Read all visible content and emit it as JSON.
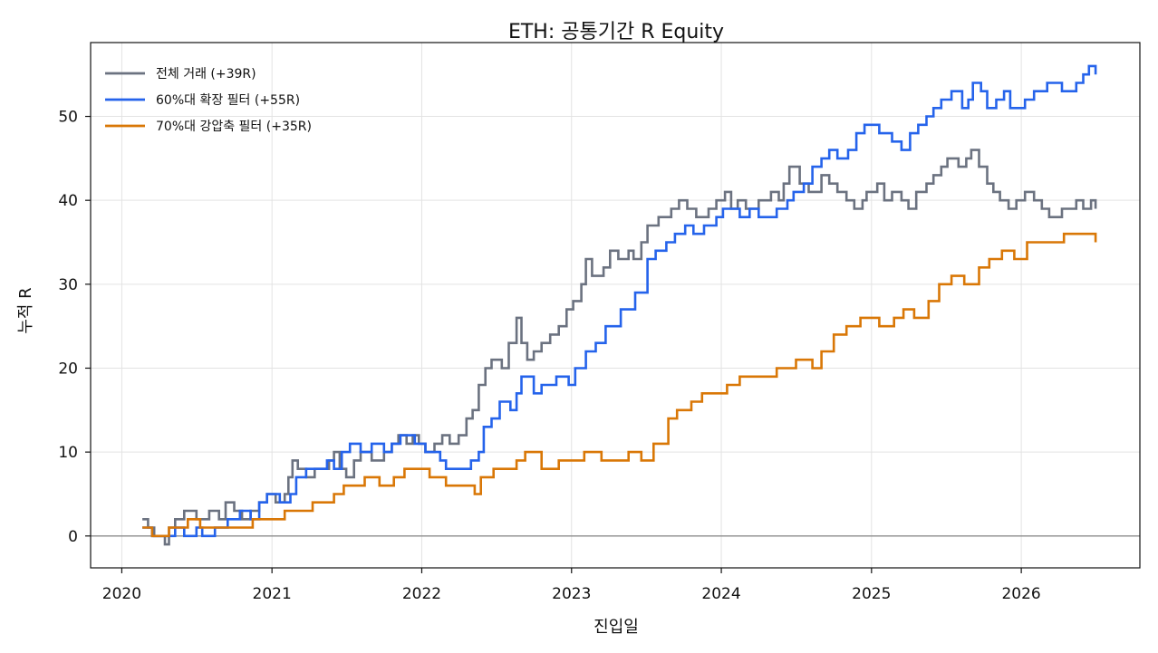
{
  "chart_data": {
    "type": "line",
    "step": true,
    "title": "ETH: 공통기간 R Equity",
    "xlabel": "진입일",
    "ylabel": "누적 R",
    "xlim": [
      "2019-10-17",
      "2026-10-17"
    ],
    "ylim": [
      -3.8,
      58.8
    ],
    "xticks": [
      "2020",
      "2021",
      "2022",
      "2023",
      "2024",
      "2025",
      "2026"
    ],
    "yticks": [
      0,
      10,
      20,
      30,
      40,
      50
    ],
    "grid": true,
    "legend_position": "top-left",
    "series": [
      {
        "name": "전체 거래 (+39R)",
        "color": "#6b7280",
        "points": [
          [
            "2020-02-20",
            2
          ],
          [
            "2020-03-05",
            1
          ],
          [
            "2020-03-20",
            0
          ],
          [
            "2020-04-15",
            -1
          ],
          [
            "2020-04-25",
            1
          ],
          [
            "2020-05-10",
            2
          ],
          [
            "2020-06-01",
            3
          ],
          [
            "2020-07-01",
            2
          ],
          [
            "2020-08-01",
            3
          ],
          [
            "2020-08-25",
            2
          ],
          [
            "2020-09-10",
            4
          ],
          [
            "2020-10-01",
            3
          ],
          [
            "2020-10-20",
            2
          ],
          [
            "2020-11-10",
            3
          ],
          [
            "2020-12-01",
            4
          ],
          [
            "2020-12-20",
            5
          ],
          [
            "2021-01-10",
            4
          ],
          [
            "2021-02-01",
            5
          ],
          [
            "2021-02-10",
            7
          ],
          [
            "2021-02-20",
            9
          ],
          [
            "2021-03-05",
            8
          ],
          [
            "2021-03-25",
            7
          ],
          [
            "2021-04-15",
            8
          ],
          [
            "2021-05-20",
            9
          ],
          [
            "2021-06-01",
            10
          ],
          [
            "2021-06-15",
            8
          ],
          [
            "2021-07-01",
            7
          ],
          [
            "2021-07-20",
            9
          ],
          [
            "2021-08-05",
            10
          ],
          [
            "2021-09-01",
            9
          ],
          [
            "2021-10-01",
            10
          ],
          [
            "2021-10-20",
            11
          ],
          [
            "2021-11-05",
            12
          ],
          [
            "2021-11-25",
            11
          ],
          [
            "2021-12-10",
            12
          ],
          [
            "2021-12-25",
            11
          ],
          [
            "2022-01-10",
            10
          ],
          [
            "2022-02-01",
            11
          ],
          [
            "2022-02-20",
            12
          ],
          [
            "2022-03-10",
            11
          ],
          [
            "2022-04-01",
            12
          ],
          [
            "2022-04-20",
            14
          ],
          [
            "2022-05-05",
            15
          ],
          [
            "2022-05-20",
            18
          ],
          [
            "2022-06-05",
            20
          ],
          [
            "2022-06-20",
            21
          ],
          [
            "2022-07-15",
            20
          ],
          [
            "2022-08-01",
            23
          ],
          [
            "2022-08-20",
            26
          ],
          [
            "2022-09-01",
            23
          ],
          [
            "2022-09-15",
            21
          ],
          [
            "2022-10-01",
            22
          ],
          [
            "2022-10-20",
            23
          ],
          [
            "2022-11-10",
            24
          ],
          [
            "2022-12-01",
            25
          ],
          [
            "2022-12-20",
            27
          ],
          [
            "2023-01-05",
            28
          ],
          [
            "2023-01-25",
            30
          ],
          [
            "2023-02-05",
            33
          ],
          [
            "2023-02-20",
            31
          ],
          [
            "2023-03-20",
            32
          ],
          [
            "2023-04-05",
            34
          ],
          [
            "2023-04-25",
            33
          ],
          [
            "2023-05-20",
            34
          ],
          [
            "2023-06-01",
            33
          ],
          [
            "2023-06-20",
            35
          ],
          [
            "2023-07-05",
            37
          ],
          [
            "2023-08-01",
            38
          ],
          [
            "2023-09-01",
            39
          ],
          [
            "2023-09-20",
            40
          ],
          [
            "2023-10-10",
            39
          ],
          [
            "2023-11-01",
            38
          ],
          [
            "2023-12-01",
            39
          ],
          [
            "2023-12-20",
            40
          ],
          [
            "2024-01-10",
            41
          ],
          [
            "2024-01-25",
            39
          ],
          [
            "2024-02-10",
            40
          ],
          [
            "2024-03-01",
            39
          ],
          [
            "2024-04-01",
            40
          ],
          [
            "2024-05-01",
            41
          ],
          [
            "2024-05-20",
            40
          ],
          [
            "2024-06-01",
            42
          ],
          [
            "2024-06-15",
            44
          ],
          [
            "2024-07-10",
            42
          ],
          [
            "2024-08-01",
            41
          ],
          [
            "2024-09-01",
            43
          ],
          [
            "2024-09-20",
            42
          ],
          [
            "2024-10-10",
            41
          ],
          [
            "2024-11-01",
            40
          ],
          [
            "2024-11-20",
            39
          ],
          [
            "2024-12-10",
            40
          ],
          [
            "2024-12-20",
            41
          ],
          [
            "2025-01-15",
            42
          ],
          [
            "2025-02-01",
            40
          ],
          [
            "2025-02-20",
            41
          ],
          [
            "2025-03-15",
            40
          ],
          [
            "2025-04-01",
            39
          ],
          [
            "2025-04-20",
            41
          ],
          [
            "2025-05-15",
            42
          ],
          [
            "2025-06-01",
            43
          ],
          [
            "2025-06-20",
            44
          ],
          [
            "2025-07-05",
            45
          ],
          [
            "2025-08-01",
            44
          ],
          [
            "2025-08-20",
            45
          ],
          [
            "2025-09-01",
            46
          ],
          [
            "2025-09-20",
            44
          ],
          [
            "2025-10-10",
            42
          ],
          [
            "2025-10-25",
            41
          ],
          [
            "2025-11-10",
            40
          ],
          [
            "2025-12-01",
            39
          ],
          [
            "2025-12-20",
            40
          ],
          [
            "2026-01-10",
            41
          ],
          [
            "2026-02-01",
            40
          ],
          [
            "2026-02-20",
            39
          ],
          [
            "2026-03-10",
            38
          ],
          [
            "2026-04-10",
            39
          ],
          [
            "2026-05-15",
            40
          ],
          [
            "2026-06-01",
            39
          ],
          [
            "2026-06-20",
            40
          ],
          [
            "2026-07-01",
            39
          ]
        ]
      },
      {
        "name": "60%대 확장 필터 (+55R)",
        "color": "#2563eb",
        "points": [
          [
            "2020-02-20",
            1
          ],
          [
            "2020-03-15",
            0
          ],
          [
            "2020-04-05",
            0
          ],
          [
            "2020-05-10",
            1
          ],
          [
            "2020-06-01",
            0
          ],
          [
            "2020-07-01",
            1
          ],
          [
            "2020-07-15",
            0
          ],
          [
            "2020-08-01",
            0
          ],
          [
            "2020-08-15",
            1
          ],
          [
            "2020-09-15",
            2
          ],
          [
            "2020-10-15",
            3
          ],
          [
            "2020-11-10",
            2
          ],
          [
            "2020-12-01",
            4
          ],
          [
            "2020-12-20",
            5
          ],
          [
            "2021-01-20",
            4
          ],
          [
            "2021-02-15",
            5
          ],
          [
            "2021-03-01",
            7
          ],
          [
            "2021-03-25",
            8
          ],
          [
            "2021-04-20",
            8
          ],
          [
            "2021-05-15",
            9
          ],
          [
            "2021-06-01",
            8
          ],
          [
            "2021-06-20",
            10
          ],
          [
            "2021-07-10",
            11
          ],
          [
            "2021-08-05",
            10
          ],
          [
            "2021-09-01",
            11
          ],
          [
            "2021-10-01",
            10
          ],
          [
            "2021-10-20",
            11
          ],
          [
            "2021-11-10",
            12
          ],
          [
            "2021-12-15",
            11
          ],
          [
            "2022-01-10",
            10
          ],
          [
            "2022-02-15",
            9
          ],
          [
            "2022-03-01",
            8
          ],
          [
            "2022-04-10",
            8
          ],
          [
            "2022-05-01",
            9
          ],
          [
            "2022-05-20",
            10
          ],
          [
            "2022-06-01",
            13
          ],
          [
            "2022-06-20",
            14
          ],
          [
            "2022-07-10",
            16
          ],
          [
            "2022-08-05",
            15
          ],
          [
            "2022-08-20",
            17
          ],
          [
            "2022-09-01",
            19
          ],
          [
            "2022-10-01",
            17
          ],
          [
            "2022-10-20",
            18
          ],
          [
            "2022-11-25",
            19
          ],
          [
            "2022-12-25",
            18
          ],
          [
            "2023-01-10",
            20
          ],
          [
            "2023-02-05",
            22
          ],
          [
            "2023-03-01",
            23
          ],
          [
            "2023-03-25",
            25
          ],
          [
            "2023-05-01",
            27
          ],
          [
            "2023-06-05",
            29
          ],
          [
            "2023-07-05",
            33
          ],
          [
            "2023-07-25",
            34
          ],
          [
            "2023-08-20",
            35
          ],
          [
            "2023-09-10",
            36
          ],
          [
            "2023-10-05",
            37
          ],
          [
            "2023-10-25",
            36
          ],
          [
            "2023-11-20",
            37
          ],
          [
            "2023-12-20",
            38
          ],
          [
            "2024-01-05",
            39
          ],
          [
            "2024-02-15",
            38
          ],
          [
            "2024-03-10",
            39
          ],
          [
            "2024-04-01",
            38
          ],
          [
            "2024-05-15",
            39
          ],
          [
            "2024-06-10",
            40
          ],
          [
            "2024-06-25",
            41
          ],
          [
            "2024-07-20",
            42
          ],
          [
            "2024-08-10",
            44
          ],
          [
            "2024-09-01",
            45
          ],
          [
            "2024-09-20",
            46
          ],
          [
            "2024-10-10",
            45
          ],
          [
            "2024-11-05",
            46
          ],
          [
            "2024-11-25",
            48
          ],
          [
            "2024-12-15",
            49
          ],
          [
            "2025-01-20",
            48
          ],
          [
            "2025-02-20",
            47
          ],
          [
            "2025-03-15",
            46
          ],
          [
            "2025-04-05",
            48
          ],
          [
            "2025-04-25",
            49
          ],
          [
            "2025-05-15",
            50
          ],
          [
            "2025-06-01",
            51
          ],
          [
            "2025-06-20",
            52
          ],
          [
            "2025-07-15",
            53
          ],
          [
            "2025-08-10",
            51
          ],
          [
            "2025-08-25",
            52
          ],
          [
            "2025-09-05",
            54
          ],
          [
            "2025-09-25",
            53
          ],
          [
            "2025-10-10",
            51
          ],
          [
            "2025-11-01",
            52
          ],
          [
            "2025-11-20",
            53
          ],
          [
            "2025-12-05",
            51
          ],
          [
            "2026-01-10",
            52
          ],
          [
            "2026-02-01",
            53
          ],
          [
            "2026-03-05",
            54
          ],
          [
            "2026-04-10",
            53
          ],
          [
            "2026-05-15",
            54
          ],
          [
            "2026-06-01",
            55
          ],
          [
            "2026-06-15",
            56
          ],
          [
            "2026-07-01",
            55
          ]
        ]
      },
      {
        "name": "70%대 강압축 필터 (+35R)",
        "color": "#d97706",
        "points": [
          [
            "2020-02-20",
            1
          ],
          [
            "2020-03-15",
            0
          ],
          [
            "2020-04-25",
            1
          ],
          [
            "2020-06-10",
            2
          ],
          [
            "2020-07-10",
            1
          ],
          [
            "2020-10-01",
            1
          ],
          [
            "2020-11-15",
            2
          ],
          [
            "2021-02-01",
            3
          ],
          [
            "2021-03-15",
            3
          ],
          [
            "2021-04-10",
            4
          ],
          [
            "2021-06-01",
            5
          ],
          [
            "2021-06-25",
            6
          ],
          [
            "2021-08-15",
            7
          ],
          [
            "2021-09-20",
            6
          ],
          [
            "2021-10-25",
            7
          ],
          [
            "2021-11-20",
            8
          ],
          [
            "2022-01-20",
            7
          ],
          [
            "2022-03-01",
            6
          ],
          [
            "2022-05-10",
            5
          ],
          [
            "2022-05-25",
            7
          ],
          [
            "2022-06-25",
            8
          ],
          [
            "2022-08-20",
            9
          ],
          [
            "2022-09-10",
            10
          ],
          [
            "2022-10-20",
            8
          ],
          [
            "2022-12-01",
            9
          ],
          [
            "2023-02-01",
            10
          ],
          [
            "2023-03-15",
            9
          ],
          [
            "2023-05-20",
            10
          ],
          [
            "2023-06-20",
            9
          ],
          [
            "2023-07-20",
            11
          ],
          [
            "2023-08-25",
            14
          ],
          [
            "2023-09-15",
            15
          ],
          [
            "2023-10-20",
            16
          ],
          [
            "2023-11-15",
            17
          ],
          [
            "2024-01-15",
            18
          ],
          [
            "2024-02-15",
            19
          ],
          [
            "2024-05-15",
            20
          ],
          [
            "2024-07-01",
            21
          ],
          [
            "2024-08-10",
            20
          ],
          [
            "2024-09-01",
            22
          ],
          [
            "2024-10-01",
            24
          ],
          [
            "2024-11-01",
            25
          ],
          [
            "2024-12-05",
            26
          ],
          [
            "2025-01-20",
            25
          ],
          [
            "2025-02-25",
            26
          ],
          [
            "2025-03-20",
            27
          ],
          [
            "2025-04-15",
            26
          ],
          [
            "2025-05-20",
            28
          ],
          [
            "2025-06-15",
            30
          ],
          [
            "2025-07-15",
            31
          ],
          [
            "2025-08-15",
            30
          ],
          [
            "2025-09-20",
            32
          ],
          [
            "2025-10-15",
            33
          ],
          [
            "2025-11-15",
            34
          ],
          [
            "2025-12-15",
            33
          ],
          [
            "2026-01-15",
            35
          ],
          [
            "2026-04-15",
            36
          ],
          [
            "2026-07-01",
            35
          ]
        ]
      }
    ]
  }
}
